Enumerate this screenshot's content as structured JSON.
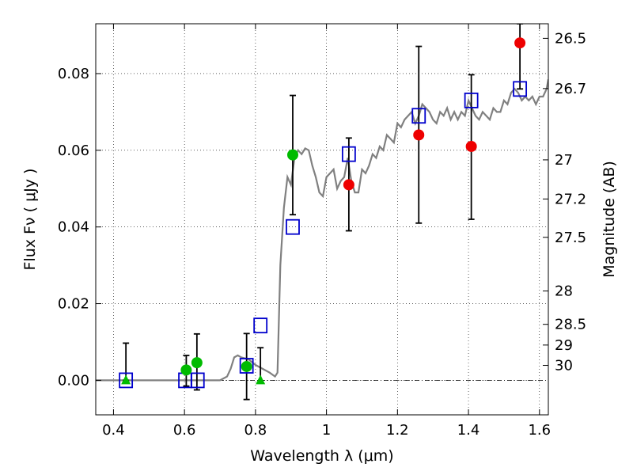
{
  "chart_data": {
    "type": "scatter",
    "xlabel": "Wavelength  λ (μm)",
    "ylabel": "Flux  Fν  ( μJy )",
    "y2label": "Magnitude (AB)",
    "xlim": [
      0.35,
      1.625
    ],
    "ylim": [
      -0.009,
      0.093
    ],
    "grid": true,
    "x_ticks": [
      0.4,
      0.6,
      0.8,
      1.0,
      1.2,
      1.4,
      1.6
    ],
    "x_tick_labels": [
      "0.4",
      "0.6",
      "0.8",
      "1",
      "1.2",
      "1.4",
      "1.6"
    ],
    "y_ticks": [
      0.0,
      0.02,
      0.04,
      0.06,
      0.08
    ],
    "y_tick_labels": [
      "0.00",
      "0.02",
      "0.04",
      "0.06",
      "0.08"
    ],
    "y2_ticks": [
      {
        "flux": 0.0892,
        "label": "26.5"
      },
      {
        "flux": 0.0761,
        "label": "26.7"
      },
      {
        "flux": 0.0575,
        "label": "27"
      },
      {
        "flux": 0.0473,
        "label": "27.2"
      },
      {
        "flux": 0.0373,
        "label": "27.5"
      },
      {
        "flux": 0.0233,
        "label": "28"
      },
      {
        "flux": 0.0146,
        "label": "28.5"
      },
      {
        "flux": 0.0092,
        "label": "29"
      },
      {
        "flux": 0.0039,
        "label": "30"
      }
    ],
    "colors": {
      "model": "#808080",
      "green": "#00bb00",
      "red": "#ee0000",
      "blue": "#0000cc",
      "errorbar": "#000000"
    },
    "model_spectrum": {
      "x": [
        0.35,
        0.7,
        0.72,
        0.73,
        0.74,
        0.75,
        0.76,
        0.78,
        0.8,
        0.82,
        0.84,
        0.855,
        0.862,
        0.87,
        0.88,
        0.89,
        0.9,
        0.91,
        0.92,
        0.93,
        0.94,
        0.95,
        0.96,
        0.97,
        0.98,
        0.99,
        1.0,
        1.01,
        1.02,
        1.03,
        1.04,
        1.05,
        1.06,
        1.07,
        1.08,
        1.09,
        1.1,
        1.11,
        1.12,
        1.13,
        1.14,
        1.15,
        1.16,
        1.17,
        1.18,
        1.19,
        1.2,
        1.21,
        1.22,
        1.23,
        1.24,
        1.25,
        1.26,
        1.27,
        1.28,
        1.29,
        1.3,
        1.31,
        1.32,
        1.33,
        1.34,
        1.35,
        1.36,
        1.37,
        1.38,
        1.39,
        1.4,
        1.41,
        1.42,
        1.43,
        1.44,
        1.45,
        1.46,
        1.47,
        1.48,
        1.49,
        1.5,
        1.51,
        1.52,
        1.53,
        1.54,
        1.55,
        1.56,
        1.57,
        1.58,
        1.59,
        1.6,
        1.61,
        1.62,
        1.625
      ],
      "y": [
        0.0,
        0.0,
        0.001,
        0.003,
        0.006,
        0.0065,
        0.006,
        0.0055,
        0.004,
        0.003,
        0.002,
        0.001,
        0.002,
        0.03,
        0.045,
        0.053,
        0.051,
        0.058,
        0.06,
        0.059,
        0.0605,
        0.06,
        0.056,
        0.053,
        0.049,
        0.048,
        0.053,
        0.054,
        0.055,
        0.05,
        0.052,
        0.053,
        0.058,
        0.052,
        0.049,
        0.049,
        0.055,
        0.054,
        0.056,
        0.059,
        0.058,
        0.061,
        0.06,
        0.064,
        0.063,
        0.062,
        0.067,
        0.066,
        0.068,
        0.069,
        0.07,
        0.067,
        0.069,
        0.072,
        0.071,
        0.07,
        0.068,
        0.067,
        0.07,
        0.069,
        0.071,
        0.068,
        0.07,
        0.068,
        0.07,
        0.069,
        0.073,
        0.071,
        0.069,
        0.068,
        0.07,
        0.069,
        0.068,
        0.071,
        0.07,
        0.07,
        0.073,
        0.072,
        0.075,
        0.076,
        0.075,
        0.073,
        0.074,
        0.073,
        0.074,
        0.072,
        0.074,
        0.074,
        0.076,
        0.0785
      ]
    },
    "series": [
      {
        "marker": "circle",
        "color": "green",
        "points": [
          {
            "x": 0.605,
            "y": 0.0027
          },
          {
            "x": 0.635,
            "y": 0.0046
          },
          {
            "x": 0.775,
            "y": 0.0036
          },
          {
            "x": 0.905,
            "y": 0.0588
          }
        ]
      },
      {
        "marker": "triangle",
        "color": "green",
        "points": [
          {
            "x": 0.435,
            "y": 0.0
          },
          {
            "x": 0.814,
            "y": 0.0
          }
        ]
      },
      {
        "marker": "circle",
        "color": "red",
        "points": [
          {
            "x": 1.063,
            "y": 0.051
          },
          {
            "x": 1.26,
            "y": 0.064
          },
          {
            "x": 1.408,
            "y": 0.061
          },
          {
            "x": 1.545,
            "y": 0.088
          }
        ]
      },
      {
        "marker": "open-square",
        "color": "blue",
        "points": [
          {
            "x": 0.435,
            "y": 0.0
          },
          {
            "x": 0.602,
            "y": 0.0
          },
          {
            "x": 0.637,
            "y": 0.0
          },
          {
            "x": 0.775,
            "y": 0.0038
          },
          {
            "x": 0.814,
            "y": 0.0143
          },
          {
            "x": 0.905,
            "y": 0.04
          },
          {
            "x": 1.063,
            "y": 0.059
          },
          {
            "x": 1.26,
            "y": 0.069
          },
          {
            "x": 1.408,
            "y": 0.073
          },
          {
            "x": 1.545,
            "y": 0.076
          }
        ]
      }
    ],
    "errorbars": [
      {
        "x": 0.435,
        "low": 0.0,
        "high": 0.0097
      },
      {
        "x": 0.605,
        "low": -0.0015,
        "high": 0.0065
      },
      {
        "x": 0.635,
        "low": -0.0025,
        "high": 0.0121
      },
      {
        "x": 0.775,
        "low": -0.005,
        "high": 0.0122
      },
      {
        "x": 0.814,
        "low": -0.0005,
        "high": 0.0085
      },
      {
        "x": 0.905,
        "low": 0.0432,
        "high": 0.0743
      },
      {
        "x": 1.063,
        "low": 0.039,
        "high": 0.0632
      },
      {
        "x": 1.26,
        "low": 0.041,
        "high": 0.0871
      },
      {
        "x": 1.408,
        "low": 0.042,
        "high": 0.0797
      },
      {
        "x": 1.545,
        "low": 0.076,
        "high": 0.093
      }
    ],
    "zero_line": {
      "y": 0.0,
      "style": "dash-dot"
    }
  }
}
